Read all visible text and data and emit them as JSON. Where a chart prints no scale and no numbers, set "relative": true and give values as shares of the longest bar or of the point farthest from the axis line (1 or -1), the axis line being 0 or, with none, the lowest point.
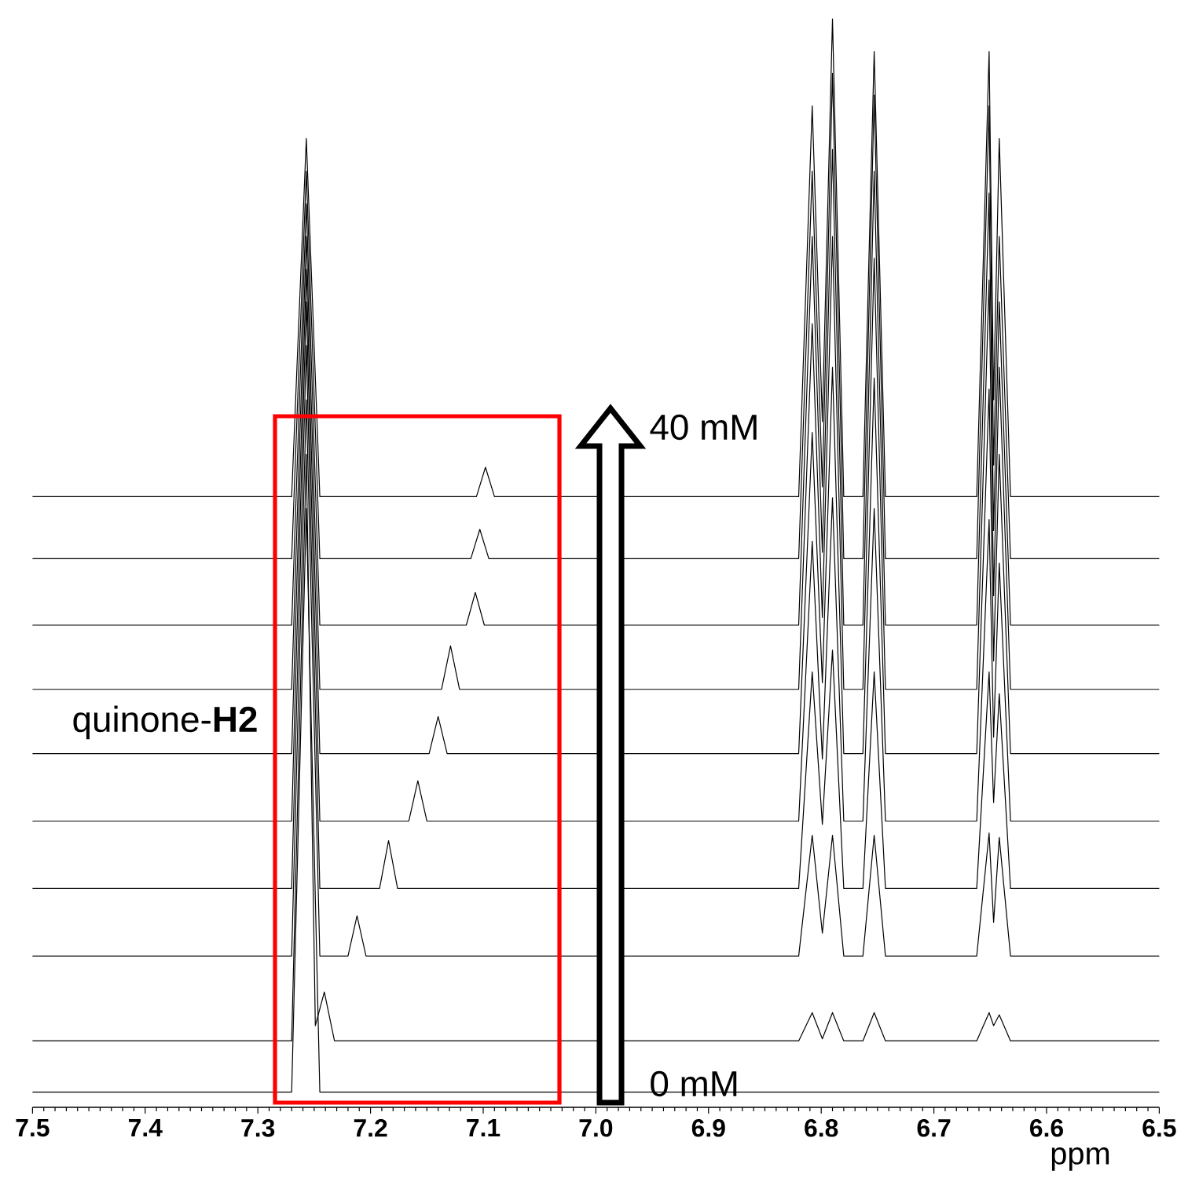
{
  "chart_data": {
    "type": "line",
    "relative": true,
    "xlabel": "ppm",
    "xlim": [
      7.5,
      6.5
    ],
    "xticks": [
      7.5,
      7.4,
      7.3,
      7.2,
      7.1,
      {
        "value": 7.0,
        "label": "7.0"
      },
      6.9,
      6.8,
      6.7,
      6.6,
      6.5
    ],
    "annotations": [
      "40 mM",
      "quinone-**H2**",
      "0 mM"
    ],
    "series": [
      {
        "color": "#000000",
        "x": [
          7.5,
          7.27,
          7.257,
          7.245,
          6.5
        ],
        "values": [
          0.014,
          0.014,
          0.55,
          0.014,
          0.014
        ]
      },
      {
        "color": "#000000",
        "x": [
          7.5,
          7.27,
          7.257,
          7.249,
          7.241,
          7.232,
          6.82,
          6.808,
          6.799,
          6.79,
          6.78,
          6.763,
          6.753,
          6.743,
          6.662,
          6.651,
          6.647,
          6.642,
          6.632,
          6.5
        ],
        "values": [
          0.061,
          0.061,
          0.6,
          0.075,
          0.106,
          0.061,
          0.061,
          0.087,
          0.063,
          0.087,
          0.061,
          0.061,
          0.087,
          0.061,
          0.061,
          0.087,
          0.075,
          0.085,
          0.061,
          0.061
        ]
      },
      {
        "color": "#000000",
        "x": [
          7.5,
          7.27,
          7.257,
          7.245,
          7.22,
          7.212,
          7.204,
          6.82,
          6.808,
          6.799,
          6.79,
          6.78,
          6.763,
          6.753,
          6.743,
          6.662,
          6.651,
          6.647,
          6.642,
          6.632,
          6.5
        ],
        "values": [
          0.139,
          0.139,
          0.65,
          0.139,
          0.139,
          0.176,
          0.139,
          0.139,
          0.25,
          0.16,
          0.25,
          0.139,
          0.139,
          0.25,
          0.139,
          0.139,
          0.252,
          0.17,
          0.248,
          0.139,
          0.139
        ]
      },
      {
        "color": "#000000",
        "x": [
          7.5,
          7.27,
          7.257,
          7.245,
          7.192,
          7.184,
          7.176,
          6.82,
          6.808,
          6.799,
          6.79,
          6.78,
          6.763,
          6.753,
          6.743,
          6.662,
          6.651,
          6.647,
          6.642,
          6.632,
          6.5
        ],
        "values": [
          0.201,
          0.201,
          0.7,
          0.201,
          0.201,
          0.245,
          0.201,
          0.201,
          0.4,
          0.26,
          0.42,
          0.201,
          0.201,
          0.4,
          0.201,
          0.201,
          0.4,
          0.28,
          0.38,
          0.201,
          0.201
        ]
      },
      {
        "color": "#000000",
        "x": [
          7.5,
          7.27,
          7.257,
          7.245,
          7.166,
          7.158,
          7.15,
          6.82,
          6.808,
          6.799,
          6.79,
          6.78,
          6.763,
          6.753,
          6.743,
          6.662,
          6.651,
          6.647,
          6.642,
          6.632,
          6.5
        ],
        "values": [
          0.263,
          0.263,
          0.74,
          0.263,
          0.263,
          0.3,
          0.263,
          0.263,
          0.52,
          0.32,
          0.56,
          0.263,
          0.263,
          0.55,
          0.263,
          0.263,
          0.54,
          0.34,
          0.5,
          0.263,
          0.263
        ]
      },
      {
        "color": "#000000",
        "x": [
          7.5,
          7.27,
          7.257,
          7.245,
          7.148,
          7.14,
          7.132,
          6.82,
          6.808,
          6.799,
          6.79,
          6.78,
          6.763,
          6.753,
          6.743,
          6.662,
          6.651,
          6.647,
          6.642,
          6.632,
          6.5
        ],
        "values": [
          0.325,
          0.325,
          0.77,
          0.325,
          0.325,
          0.359,
          0.325,
          0.325,
          0.62,
          0.39,
          0.68,
          0.325,
          0.325,
          0.67,
          0.325,
          0.325,
          0.66,
          0.41,
          0.6,
          0.325,
          0.325
        ]
      },
      {
        "color": "#000000",
        "x": [
          7.5,
          7.27,
          7.257,
          7.245,
          7.137,
          7.129,
          7.121,
          6.82,
          6.808,
          6.799,
          6.79,
          6.78,
          6.763,
          6.753,
          6.743,
          6.662,
          6.651,
          6.647,
          6.642,
          6.632,
          6.5
        ],
        "values": [
          0.384,
          0.384,
          0.8,
          0.384,
          0.384,
          0.424,
          0.384,
          0.384,
          0.72,
          0.45,
          0.8,
          0.384,
          0.384,
          0.78,
          0.384,
          0.384,
          0.76,
          0.47,
          0.68,
          0.384,
          0.384
        ]
      },
      {
        "color": "#000000",
        "x": [
          7.5,
          7.27,
          7.257,
          7.245,
          7.115,
          7.107,
          7.099,
          6.82,
          6.808,
          6.799,
          6.79,
          6.78,
          6.763,
          6.753,
          6.743,
          6.662,
          6.651,
          6.647,
          6.642,
          6.632,
          6.5
        ],
        "values": [
          0.443,
          0.443,
          0.83,
          0.443,
          0.443,
          0.473,
          0.443,
          0.443,
          0.8,
          0.51,
          0.88,
          0.443,
          0.443,
          0.86,
          0.443,
          0.443,
          0.84,
          0.53,
          0.74,
          0.443,
          0.443
        ]
      },
      {
        "color": "#000000",
        "x": [
          7.5,
          7.27,
          7.257,
          7.245,
          7.111,
          7.103,
          7.095,
          6.82,
          6.808,
          6.799,
          6.79,
          6.78,
          6.763,
          6.753,
          6.743,
          6.662,
          6.651,
          6.647,
          6.642,
          6.632,
          6.5
        ],
        "values": [
          0.504,
          0.504,
          0.86,
          0.504,
          0.504,
          0.531,
          0.504,
          0.504,
          0.86,
          0.57,
          0.95,
          0.504,
          0.504,
          0.93,
          0.504,
          0.504,
          0.92,
          0.59,
          0.8,
          0.504,
          0.504
        ]
      },
      {
        "color": "#000000",
        "x": [
          7.5,
          7.27,
          7.257,
          7.245,
          7.106,
          7.098,
          7.09,
          6.82,
          6.808,
          6.799,
          6.79,
          6.78,
          6.763,
          6.753,
          6.743,
          6.662,
          6.651,
          6.647,
          6.642,
          6.632,
          6.5
        ],
        "values": [
          0.561,
          0.561,
          0.89,
          0.561,
          0.561,
          0.588,
          0.561,
          0.561,
          0.92,
          0.63,
          1,
          0.561,
          0.561,
          0.97,
          0.561,
          0.561,
          0.97,
          0.65,
          0.89,
          0.561,
          0.561
        ]
      }
    ]
  }
}
